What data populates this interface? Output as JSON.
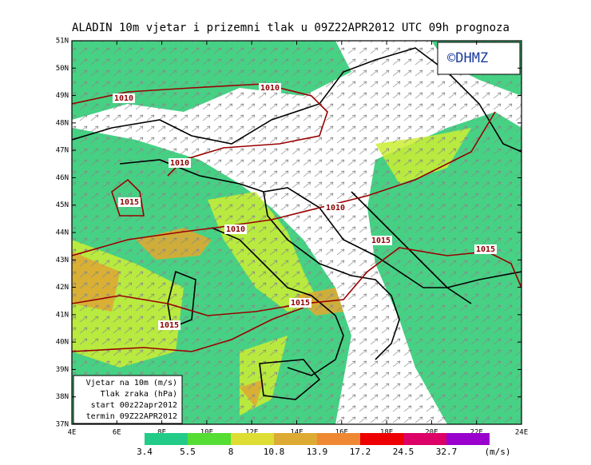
{
  "title": "ALADIN 10m vjetar i prizemni tlak u 09Z22APR2012 UTC 09h prognoza",
  "credit": "©DHMZ",
  "lat_labels": [
    "51N",
    "50N",
    "49N",
    "48N",
    "47N",
    "46N",
    "45N",
    "44N",
    "43N",
    "42N",
    "41N",
    "40N",
    "39N",
    "38N",
    "37N"
  ],
  "lon_labels": [
    "4E",
    "6E",
    "8E",
    "10E",
    "12E",
    "14E",
    "16E",
    "18E",
    "20E",
    "22E",
    "24E"
  ],
  "isobar_labels": [
    "1010",
    "1010",
    "1010",
    "1010",
    "1010",
    "1015",
    "1015",
    "1015",
    "1015",
    "1015"
  ],
  "info_box": [
    "Vjetar na 10m (m/s)",
    "Tlak zraka (hPa)",
    "start 00z22apr2012",
    "termin 09Z22APR2012"
  ],
  "colorbar": {
    "labels": [
      3.4,
      5.5,
      8,
      10.8,
      13.9,
      17.2,
      24.5,
      32.7
    ],
    "colors": [
      "#22cc88",
      "#55dd33",
      "#dddd33",
      "#ddaa33",
      "#ee8833",
      "#ee0000",
      "#dd0066",
      "#9900cc"
    ],
    "unit": "(m/s)"
  }
}
